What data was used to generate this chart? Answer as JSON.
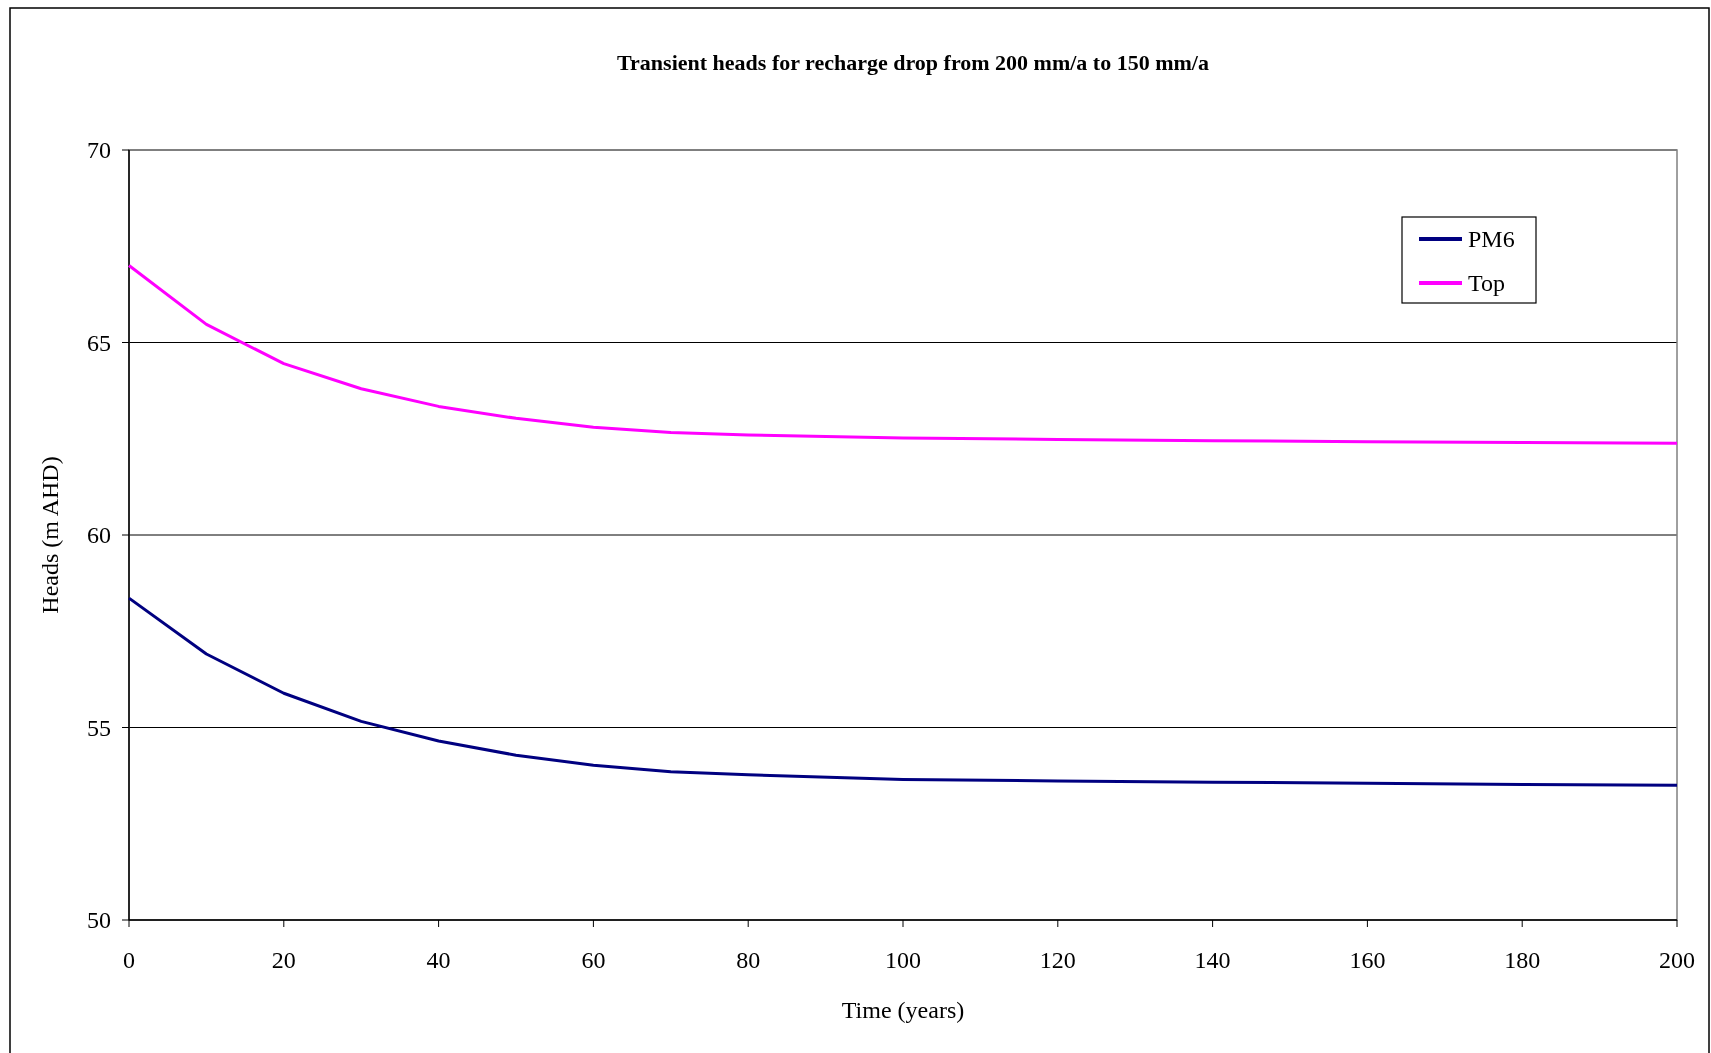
{
  "chart_data": {
    "type": "line",
    "title": "Transient heads for recharge drop from 200 mm/a to 150 mm/a",
    "xlabel": "Time (years)",
    "ylabel": "Heads (m AHD)",
    "x": [
      0,
      10,
      20,
      30,
      40,
      50,
      60,
      70,
      80,
      100,
      120,
      140,
      160,
      180,
      200
    ],
    "series": [
      {
        "name": "PM6",
        "color": "#000080",
        "values": [
          58.36,
          56.91,
          55.89,
          55.16,
          54.65,
          54.28,
          54.02,
          53.85,
          53.77,
          53.65,
          53.61,
          53.58,
          53.55,
          53.52,
          53.5
        ]
      },
      {
        "name": "Top",
        "color": "#ff00ff",
        "values": [
          67.0,
          65.47,
          64.45,
          63.8,
          63.34,
          63.03,
          62.8,
          62.66,
          62.6,
          62.52,
          62.48,
          62.45,
          62.42,
          62.4,
          62.38
        ]
      }
    ],
    "xlim": [
      0,
      200
    ],
    "xticks": [
      0,
      20,
      40,
      60,
      80,
      100,
      120,
      140,
      160,
      180,
      200
    ],
    "ylim": [
      50,
      70
    ],
    "yticks": [
      50,
      55,
      60,
      65,
      70
    ],
    "grid": "y",
    "legend": "top right",
    "marker": "none",
    "line_style": "solid"
  }
}
